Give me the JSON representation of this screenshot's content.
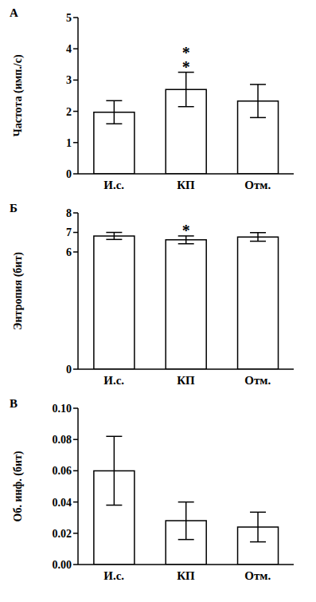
{
  "chart_data": [
    {
      "type": "bar",
      "title": "А",
      "y_label": "Частота (имп./с)",
      "categories": [
        "И.с.",
        "КП",
        "Отм."
      ],
      "values": [
        1.97,
        2.7,
        2.33
      ],
      "errors": [
        0.37,
        0.55,
        0.53
      ],
      "ylim": [
        0,
        5
      ],
      "yticks": [
        0,
        1,
        2,
        3,
        4,
        5
      ],
      "grid": false,
      "color": "#ffffff",
      "annotations": [
        {
          "category": "КП",
          "text": "**"
        }
      ]
    },
    {
      "type": "bar",
      "title": "Б",
      "y_label": "Энтропия (бит)",
      "categories": [
        "И.с.",
        "КП",
        "Отм."
      ],
      "values": [
        6.82,
        6.62,
        6.77
      ],
      "errors": [
        0.18,
        0.2,
        0.22
      ],
      "ylim": [
        0,
        8
      ],
      "yticks": [
        0,
        6,
        7,
        8
      ],
      "grid": false,
      "color": "#ffffff",
      "annotations": [
        {
          "category": "КП",
          "text": "*"
        }
      ]
    },
    {
      "type": "bar",
      "title": "В",
      "y_label": "Об. инф. (бит)",
      "categories": [
        "И.с.",
        "КП",
        "Отм."
      ],
      "values": [
        0.06,
        0.028,
        0.024
      ],
      "errors": [
        0.022,
        0.012,
        0.0095
      ],
      "ylim": [
        0,
        0.1
      ],
      "yticks": [
        {
          "value": 0,
          "label": "0.00"
        },
        {
          "value": 0.02,
          "label": "0.02"
        },
        {
          "value": 0.04,
          "label": "0.04"
        },
        {
          "value": 0.06,
          "label": "0.06"
        },
        {
          "value": 0.08,
          "label": "0.08"
        },
        {
          "value": 0.1,
          "label": "0.10"
        }
      ],
      "grid": false,
      "color": "#ffffff",
      "annotations": []
    }
  ]
}
